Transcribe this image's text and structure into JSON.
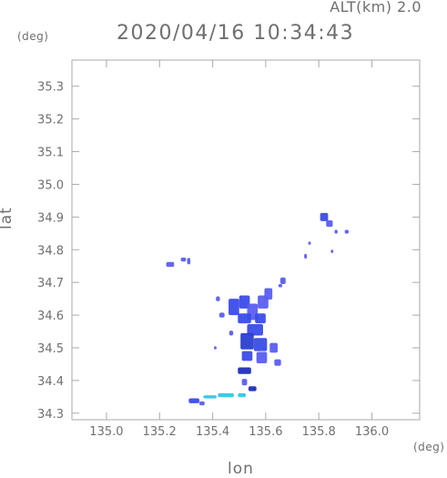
{
  "header": {
    "alt_label": "ALT(km) 2.0",
    "datetime": "2020/04/16 10:34:43",
    "y_unit": "(deg)",
    "x_unit": "(deg)"
  },
  "chart_data": {
    "type": "heatmap",
    "title": "2020/04/16 10:34:43",
    "xlabel": "lon",
    "ylabel": "lat",
    "x_unit": "(deg)",
    "y_unit": "(deg)",
    "xlim": [
      134.87,
      136.18
    ],
    "ylim": [
      34.28,
      35.38
    ],
    "x_ticks": [
      135.0,
      135.2,
      135.4,
      135.6,
      135.8,
      136.0
    ],
    "x_tick_labels": [
      "135.0",
      "135.2",
      "135.4",
      "135.6",
      "135.8",
      "136.0"
    ],
    "y_ticks": [
      34.3,
      34.4,
      34.5,
      34.6,
      34.7,
      34.8,
      34.9,
      35.0,
      35.1,
      35.2,
      35.3
    ],
    "y_tick_labels": [
      "34.3",
      "34.4",
      "34.5",
      "34.6",
      "34.7",
      "34.8",
      "34.9",
      "35.0",
      "35.1",
      "35.2",
      "35.3"
    ],
    "grid": false,
    "colors": {
      "frame": "#aaaaaa",
      "echo_weak": "#5a5ef0",
      "echo_medium": "#3a4ce8",
      "echo_strong": "#2b3fd0",
      "echo_cyan": "#32c8e8",
      "echo_dark": "#1f2fb8"
    },
    "echo_cells": [
      {
        "lon": 135.24,
        "lat": 34.755,
        "lon_w": 0.03,
        "lat_h": 0.015,
        "level": "weak"
      },
      {
        "lon": 135.29,
        "lat": 34.77,
        "lon_w": 0.02,
        "lat_h": 0.012,
        "level": "weak"
      },
      {
        "lon": 135.31,
        "lat": 34.765,
        "lon_w": 0.012,
        "lat_h": 0.02,
        "level": "weak"
      },
      {
        "lon": 135.48,
        "lat": 34.625,
        "lon_w": 0.04,
        "lat_h": 0.05,
        "level": "medium"
      },
      {
        "lon": 135.52,
        "lat": 34.64,
        "lon_w": 0.04,
        "lat_h": 0.04,
        "level": "medium"
      },
      {
        "lon": 135.55,
        "lat": 34.61,
        "lon_w": 0.04,
        "lat_h": 0.05,
        "level": "weak"
      },
      {
        "lon": 135.59,
        "lat": 34.64,
        "lon_w": 0.04,
        "lat_h": 0.04,
        "level": "weak"
      },
      {
        "lon": 135.61,
        "lat": 34.665,
        "lon_w": 0.03,
        "lat_h": 0.035,
        "level": "weak"
      },
      {
        "lon": 135.58,
        "lat": 34.59,
        "lon_w": 0.04,
        "lat_h": 0.03,
        "level": "medium"
      },
      {
        "lon": 135.52,
        "lat": 34.59,
        "lon_w": 0.05,
        "lat_h": 0.03,
        "level": "medium"
      },
      {
        "lon": 135.56,
        "lat": 34.555,
        "lon_w": 0.06,
        "lat_h": 0.035,
        "level": "medium"
      },
      {
        "lon": 135.53,
        "lat": 34.52,
        "lon_w": 0.05,
        "lat_h": 0.05,
        "level": "strong"
      },
      {
        "lon": 135.58,
        "lat": 34.51,
        "lon_w": 0.05,
        "lat_h": 0.04,
        "level": "medium"
      },
      {
        "lon": 135.63,
        "lat": 34.5,
        "lon_w": 0.03,
        "lat_h": 0.03,
        "level": "weak"
      },
      {
        "lon": 135.53,
        "lat": 34.475,
        "lon_w": 0.04,
        "lat_h": 0.03,
        "level": "medium"
      },
      {
        "lon": 135.585,
        "lat": 34.47,
        "lon_w": 0.04,
        "lat_h": 0.035,
        "level": "weak"
      },
      {
        "lon": 135.645,
        "lat": 34.455,
        "lon_w": 0.025,
        "lat_h": 0.02,
        "level": "weak"
      },
      {
        "lon": 135.435,
        "lat": 34.6,
        "lon_w": 0.02,
        "lat_h": 0.015,
        "level": "weak"
      },
      {
        "lon": 135.42,
        "lat": 34.65,
        "lon_w": 0.015,
        "lat_h": 0.015,
        "level": "weak"
      },
      {
        "lon": 135.41,
        "lat": 34.5,
        "lon_w": 0.01,
        "lat_h": 0.01,
        "level": "weak"
      },
      {
        "lon": 135.52,
        "lat": 34.43,
        "lon_w": 0.05,
        "lat_h": 0.02,
        "level": "dark"
      },
      {
        "lon": 135.55,
        "lat": 34.375,
        "lon_w": 0.03,
        "lat_h": 0.015,
        "level": "dark"
      },
      {
        "lon": 135.33,
        "lat": 34.338,
        "lon_w": 0.04,
        "lat_h": 0.015,
        "level": "medium"
      },
      {
        "lon": 135.36,
        "lat": 34.33,
        "lon_w": 0.02,
        "lat_h": 0.012,
        "level": "weak"
      },
      {
        "lon": 135.39,
        "lat": 34.35,
        "lon_w": 0.05,
        "lat_h": 0.01,
        "level": "cyan"
      },
      {
        "lon": 135.45,
        "lat": 34.355,
        "lon_w": 0.06,
        "lat_h": 0.012,
        "level": "cyan"
      },
      {
        "lon": 135.51,
        "lat": 34.355,
        "lon_w": 0.03,
        "lat_h": 0.012,
        "level": "cyan"
      },
      {
        "lon": 135.52,
        "lat": 34.395,
        "lon_w": 0.02,
        "lat_h": 0.02,
        "level": "weak"
      },
      {
        "lon": 135.82,
        "lat": 34.9,
        "lon_w": 0.03,
        "lat_h": 0.025,
        "level": "medium"
      },
      {
        "lon": 135.84,
        "lat": 34.88,
        "lon_w": 0.025,
        "lat_h": 0.02,
        "level": "weak"
      },
      {
        "lon": 135.865,
        "lat": 34.855,
        "lon_w": 0.012,
        "lat_h": 0.012,
        "level": "weak"
      },
      {
        "lon": 135.905,
        "lat": 34.855,
        "lon_w": 0.015,
        "lat_h": 0.012,
        "level": "weak"
      },
      {
        "lon": 135.765,
        "lat": 34.82,
        "lon_w": 0.01,
        "lat_h": 0.01,
        "level": "weak"
      },
      {
        "lon": 135.75,
        "lat": 34.78,
        "lon_w": 0.01,
        "lat_h": 0.015,
        "level": "weak"
      },
      {
        "lon": 135.85,
        "lat": 34.795,
        "lon_w": 0.01,
        "lat_h": 0.01,
        "level": "weak"
      },
      {
        "lon": 135.665,
        "lat": 34.705,
        "lon_w": 0.02,
        "lat_h": 0.02,
        "level": "weak"
      },
      {
        "lon": 135.655,
        "lat": 34.69,
        "lon_w": 0.015,
        "lat_h": 0.01,
        "level": "weak"
      },
      {
        "lon": 135.47,
        "lat": 34.545,
        "lon_w": 0.015,
        "lat_h": 0.015,
        "level": "weak"
      }
    ]
  }
}
